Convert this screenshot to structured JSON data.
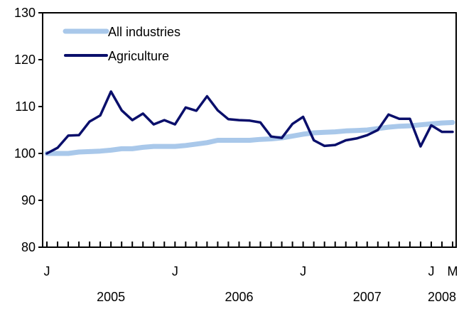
{
  "chart_data": {
    "type": "line",
    "title": "",
    "xlabel": "",
    "ylabel": "",
    "ylim": [
      80,
      130
    ],
    "yticks": [
      "80",
      "90",
      "100",
      "110",
      "120",
      "130"
    ],
    "month_labels": [
      {
        "index": 0,
        "label": "J"
      },
      {
        "index": 12,
        "label": "J"
      },
      {
        "index": 24,
        "label": "J"
      },
      {
        "index": 36,
        "label": "J"
      },
      {
        "index": 38,
        "label": "M"
      }
    ],
    "year_labels": [
      {
        "index": 6,
        "label": "2005"
      },
      {
        "index": 18,
        "label": "2006"
      },
      {
        "index": 30,
        "label": "2007"
      },
      {
        "index": 37,
        "label": "2008"
      }
    ],
    "x": [
      "2005-01",
      "2005-02",
      "2005-03",
      "2005-04",
      "2005-05",
      "2005-06",
      "2005-07",
      "2005-08",
      "2005-09",
      "2005-10",
      "2005-11",
      "2005-12",
      "2006-01",
      "2006-02",
      "2006-03",
      "2006-04",
      "2006-05",
      "2006-06",
      "2006-07",
      "2006-08",
      "2006-09",
      "2006-10",
      "2006-11",
      "2006-12",
      "2007-01",
      "2007-02",
      "2007-03",
      "2007-04",
      "2007-05",
      "2007-06",
      "2007-07",
      "2007-08",
      "2007-09",
      "2007-10",
      "2007-11",
      "2007-12",
      "2008-01",
      "2008-02",
      "2008-03"
    ],
    "series": [
      {
        "name": "All industries",
        "color": "#a9c8ea",
        "values": [
          100.0,
          100.0,
          100.0,
          100.3,
          100.4,
          100.5,
          100.7,
          101.0,
          101.0,
          101.3,
          101.5,
          101.5,
          101.5,
          101.7,
          102.0,
          102.3,
          102.8,
          102.8,
          102.8,
          102.8,
          103.0,
          103.1,
          103.3,
          103.7,
          104.1,
          104.4,
          104.5,
          104.6,
          104.8,
          104.9,
          105.0,
          105.3,
          105.6,
          105.8,
          105.9,
          106.1,
          106.3,
          106.5,
          106.6
        ]
      },
      {
        "name": "Agriculture",
        "color": "#0a0f6b",
        "values": [
          100.0,
          101.2,
          103.8,
          103.9,
          106.8,
          108.1,
          113.2,
          109.2,
          107.1,
          108.5,
          106.2,
          107.1,
          106.2,
          109.8,
          109.1,
          112.2,
          109.2,
          107.3,
          107.1,
          107.0,
          106.6,
          103.6,
          103.3,
          106.3,
          107.8,
          102.8,
          101.6,
          101.8,
          102.8,
          103.2,
          103.9,
          105.0,
          108.3,
          107.4,
          107.4,
          101.5,
          106.0,
          104.6,
          104.6
        ]
      }
    ],
    "grid": false,
    "legend": "top-left"
  }
}
